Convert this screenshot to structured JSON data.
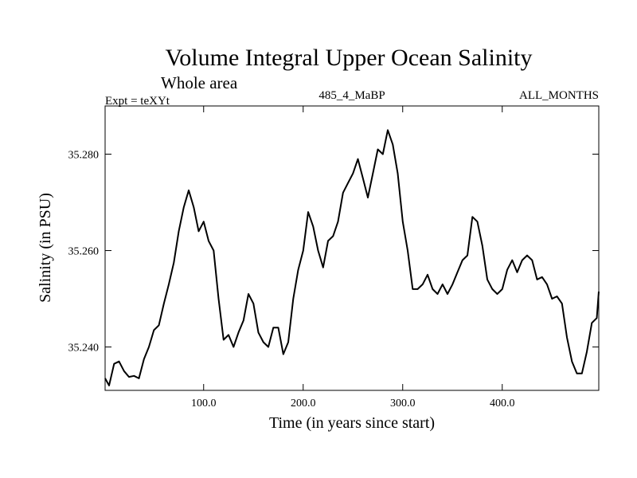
{
  "chart_data": {
    "type": "line",
    "title": "Volume Integral Upper Ocean Salinity",
    "subtitle": "Whole area",
    "header_left": "Expt = teXYt",
    "header_center": "485_4_MaBP",
    "header_right": "ALL_MONTHS",
    "xlabel": "Time (in years since start)",
    "ylabel": "Salinity (in PSU)",
    "xlim": [
      1,
      497
    ],
    "ylim": [
      35.231,
      35.29
    ],
    "xticks": [
      100.0,
      200.0,
      300.0,
      400.0
    ],
    "xtick_labels": [
      "100.0",
      "200.0",
      "300.0",
      "400.0"
    ],
    "yticks": [
      35.24,
      35.26,
      35.28
    ],
    "ytick_labels": [
      "35.240",
      "35.260",
      "35.280"
    ],
    "grid": false,
    "line_color": "#000000",
    "series": [
      {
        "x": [
          1,
          5,
          10,
          15,
          20,
          25,
          30,
          35,
          40,
          45,
          50,
          55,
          60,
          65,
          70,
          75,
          80,
          85,
          90,
          95,
          100,
          105,
          110,
          115,
          120,
          125,
          130,
          135,
          140,
          145,
          150,
          155,
          160,
          165,
          170,
          175,
          180,
          185,
          190,
          195,
          200,
          205,
          210,
          215,
          220,
          225,
          230,
          235,
          240,
          245,
          250,
          255,
          260,
          265,
          270,
          275,
          280,
          285,
          290,
          295,
          300,
          305,
          310,
          315,
          320,
          325,
          330,
          335,
          340,
          345,
          350,
          355,
          360,
          365,
          370,
          375,
          380,
          385,
          390,
          395,
          400,
          405,
          410,
          415,
          420,
          425,
          430,
          435,
          440,
          445,
          450,
          455,
          460,
          465,
          470,
          475,
          480,
          485,
          490,
          495,
          497
        ],
        "y": [
          35.2335,
          35.232,
          35.2365,
          35.237,
          35.235,
          35.2338,
          35.234,
          35.2335,
          35.2375,
          35.24,
          35.2435,
          35.2445,
          35.249,
          35.253,
          35.2575,
          35.264,
          35.269,
          35.2725,
          35.269,
          35.264,
          35.266,
          35.262,
          35.26,
          35.25,
          35.2415,
          35.2425,
          35.24,
          35.243,
          35.2455,
          35.251,
          35.249,
          35.243,
          35.241,
          35.24,
          35.244,
          35.244,
          35.2385,
          35.241,
          35.25,
          35.256,
          35.26,
          35.268,
          35.265,
          35.26,
          35.2565,
          35.262,
          35.263,
          35.266,
          35.272,
          35.274,
          35.276,
          35.279,
          35.275,
          35.271,
          35.276,
          35.281,
          35.28,
          35.285,
          35.282,
          35.276,
          35.266,
          35.26,
          35.252,
          35.252,
          35.253,
          35.255,
          35.252,
          35.251,
          35.253,
          35.251,
          35.253,
          35.2555,
          35.258,
          35.259,
          35.267,
          35.266,
          35.261,
          35.254,
          35.252,
          35.251,
          35.252,
          35.256,
          35.258,
          35.2555,
          35.258,
          35.259,
          35.258,
          35.254,
          35.2545,
          35.253,
          35.25,
          35.2505,
          35.249,
          35.242,
          35.237,
          35.2345,
          35.2345,
          35.239,
          35.245,
          35.246,
          35.2515
        ]
      }
    ]
  }
}
